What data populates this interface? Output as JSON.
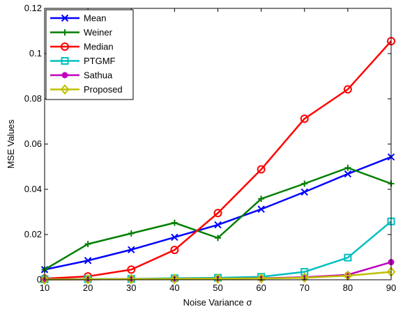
{
  "chart_data": {
    "type": "line",
    "title": "",
    "xlabel": "Noise Variance σ",
    "ylabel": "MSE Values",
    "xlim": [
      10,
      90
    ],
    "ylim": [
      0,
      0.12
    ],
    "xticks": [
      10,
      20,
      30,
      40,
      50,
      60,
      70,
      80,
      90
    ],
    "xtick_labels": [
      "10",
      "20",
      "30",
      "40",
      "50",
      "60",
      "70",
      "80",
      "90"
    ],
    "yticks": [
      0,
      0.02,
      0.04,
      0.06,
      0.08,
      0.1,
      0.12
    ],
    "ytick_labels": [
      "0",
      "0.02",
      "0.04",
      "0.06",
      "0.08",
      "0.1",
      "0.12"
    ],
    "grid": false,
    "legend_position": "top-left",
    "x": [
      10,
      20,
      30,
      40,
      50,
      60,
      70,
      80,
      90
    ],
    "series": [
      {
        "name": "Mean",
        "color": "#0000ff",
        "marker": "x",
        "values": [
          0.0045,
          0.0085,
          0.0133,
          0.0188,
          0.0243,
          0.0312,
          0.0388,
          0.0468,
          0.0543
        ]
      },
      {
        "name": "Weiner",
        "color": "#007f00",
        "marker": "plus",
        "values": [
          0.0045,
          0.0158,
          0.0205,
          0.0252,
          0.0185,
          0.0358,
          0.0425,
          0.0495,
          0.0425
        ]
      },
      {
        "name": "Median",
        "color": "#ff0000",
        "marker": "circle",
        "values": [
          0.0005,
          0.0015,
          0.0045,
          0.0132,
          0.0295,
          0.0488,
          0.0712,
          0.0842,
          0.1055
        ]
      },
      {
        "name": "PTGMF",
        "color": "#00bfbf",
        "marker": "square",
        "values": [
          0.0002,
          0.0003,
          0.0004,
          0.0007,
          0.0009,
          0.0013,
          0.0035,
          0.0098,
          0.0258
        ]
      },
      {
        "name": "Sathua",
        "color": "#bf00bf",
        "marker": "dot",
        "values": [
          0.0001,
          0.0002,
          0.0003,
          0.0004,
          0.0005,
          0.0007,
          0.0011,
          0.0022,
          0.0078
        ]
      },
      {
        "name": "Proposed",
        "color": "#bfbf00",
        "marker": "diamond",
        "values": [
          0.0001,
          0.0002,
          0.0003,
          0.0004,
          0.0005,
          0.0006,
          0.0009,
          0.0018,
          0.0035
        ]
      }
    ]
  }
}
